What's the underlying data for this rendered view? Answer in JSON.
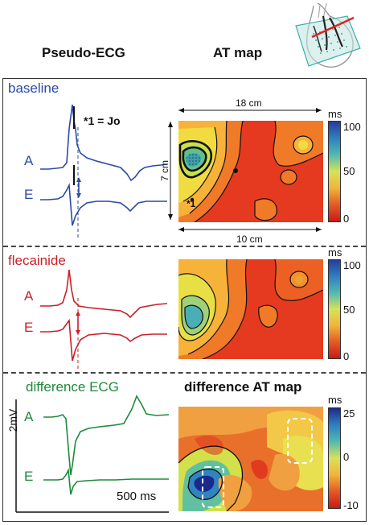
{
  "headers": {
    "pseudo_ecg": "Pseudo-ECG",
    "at_map": "AT map"
  },
  "colors": {
    "baseline": "#2a4aa8",
    "flecainide": "#c8202a",
    "difference": "#1e8a3a"
  },
  "sections": {
    "baseline": {
      "title": "baseline",
      "leads": [
        "A",
        "E"
      ],
      "annotation": "*1 = Jo",
      "map_dimensions": {
        "width_top": "18 cm",
        "height": "7 cm",
        "width_bottom": "10 cm"
      },
      "map_marker": "*1",
      "colorbar": {
        "unit": "ms",
        "ticks": [
          "100",
          "50",
          "0"
        ]
      }
    },
    "flecainide": {
      "title": "flecainide",
      "leads": [
        "A",
        "E"
      ],
      "colorbar": {
        "unit": "ms",
        "ticks": [
          "100",
          "50",
          "0"
        ]
      }
    },
    "difference": {
      "title": "difference ECG",
      "map_title": "difference AT map",
      "leads": [
        "A",
        "E"
      ],
      "scale_voltage": "2mV",
      "scale_time": "500 ms",
      "colorbar": {
        "unit": "ms",
        "ticks": [
          "25",
          "0",
          "-10"
        ]
      }
    }
  },
  "icons": [
    "heart-mesh-icon"
  ]
}
